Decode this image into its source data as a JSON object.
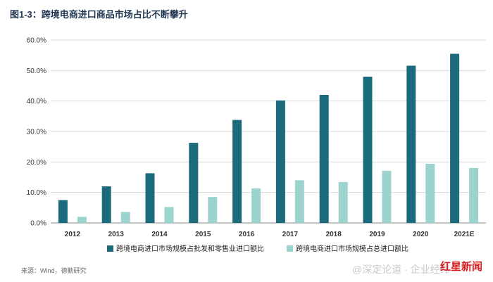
{
  "title": "图1-3：跨境电商进口商品市场占比不断攀升",
  "source": "来源：Wind，德勤研究",
  "watermark": "@深定论道 · 企业经纬",
  "stamp": "红星新闻",
  "colors": {
    "series1": "#1b6b7c",
    "series2": "#9dd3cf",
    "grid": "#d9d9d9",
    "axis": "#8a8a8a"
  },
  "chart_data": {
    "type": "bar",
    "title": "图1-3：跨境电商进口商品市场占比不断攀升",
    "categories": [
      "2012",
      "2013",
      "2014",
      "2015",
      "2016",
      "2017",
      "2018",
      "2019",
      "2020",
      "2021E"
    ],
    "series": [
      {
        "name": "跨境电商进口市场规模占批发和零售业进口额比",
        "values": [
          7.5,
          12.0,
          16.3,
          26.3,
          33.8,
          40.2,
          42.0,
          48.0,
          51.6,
          55.5
        ]
      },
      {
        "name": "跨境电商进口市场规模占总进口额比",
        "values": [
          2.0,
          3.6,
          5.2,
          8.5,
          11.3,
          14.0,
          13.4,
          17.1,
          19.4,
          18.0
        ]
      }
    ],
    "yticks": [
      "0.0%",
      "10.0%",
      "20.0%",
      "30.0%",
      "40.0%",
      "50.0%",
      "60.0%"
    ],
    "ylim": [
      0,
      60
    ],
    "xlabel": "",
    "ylabel": "",
    "grid": true,
    "legend": "bottom"
  }
}
